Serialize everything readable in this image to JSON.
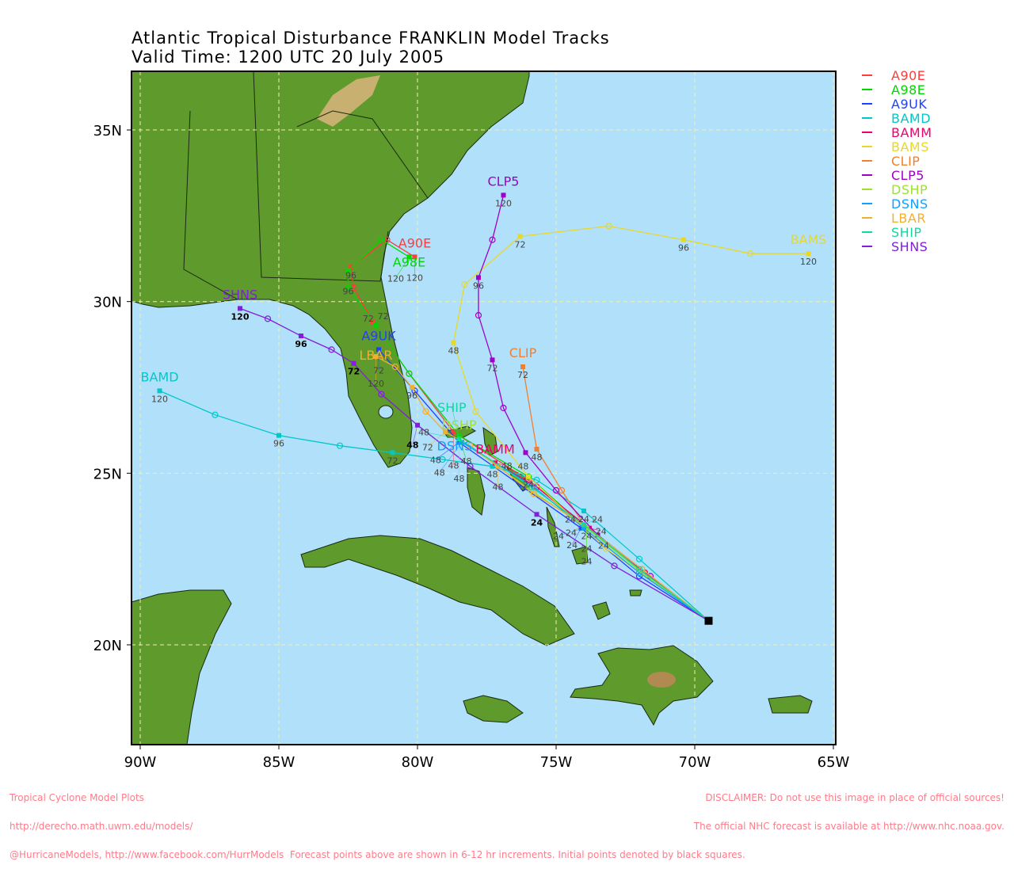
{
  "title_line1": "Atlantic Tropical Disturbance FRANKLIN Model Tracks",
  "title_line2": "Valid Time: 1200 UTC 20 July 2005",
  "footer_left": [
    "Tropical Cyclone Model Plots",
    "http://derecho.math.uwm.edu/models/",
    "@HurricaneModels, http://www.facebook.com/HurrModels  Forecast points above are shown in 6-12 hr increments. Initial points denoted by black squares."
  ],
  "footer_right": [
    "DISCLAIMER: Do not use this image in place of official sources!",
    "The official NHC forecast is available at http://www.nhc.noaa.gov."
  ],
  "chart_data": {
    "type": "map-tracks",
    "lon_range": [
      -90.3,
      -64.9
    ],
    "lat_range": [
      17.1,
      36.7
    ],
    "grid": true,
    "x_ticks": [
      "90W",
      "85W",
      "80W",
      "75W",
      "70W",
      "65W"
    ],
    "y_ticks": [
      "35N",
      "30N",
      "25N",
      "20N"
    ],
    "legend_position": "right",
    "initial_point": {
      "lat": 20.7,
      "lon": -69.5
    },
    "point_format": "[forecast_hour, lat, lon]",
    "models": [
      {
        "name": "A90E",
        "color": "#ff3b3b",
        "points": [
          [
            12,
            22.1,
            -71.8
          ],
          [
            24,
            23.4,
            -73.9
          ],
          [
            36,
            24.8,
            -76.0
          ],
          [
            48,
            26.2,
            -78.7
          ],
          [
            60,
            27.9,
            -80.3
          ],
          [
            72,
            29.4,
            -81.6
          ],
          [
            84,
            30.4,
            -82.3
          ],
          [
            96,
            31.0,
            -82.4
          ],
          [
            108,
            31.8,
            -81.1
          ],
          [
            120,
            31.3,
            -80.1
          ]
        ]
      },
      {
        "name": "A98E",
        "color": "#00d800",
        "points": [
          [
            12,
            22.1,
            -71.9
          ],
          [
            24,
            23.4,
            -73.9
          ],
          [
            36,
            24.9,
            -76.0
          ],
          [
            48,
            26.1,
            -78.5
          ],
          [
            60,
            27.9,
            -80.3
          ],
          [
            72,
            29.3,
            -81.5
          ],
          [
            84,
            30.4,
            -82.5
          ],
          [
            96,
            30.9,
            -82.5
          ],
          [
            108,
            31.8,
            -81.3
          ],
          [
            120,
            31.3,
            -80.3
          ]
        ]
      },
      {
        "name": "A9UK",
        "color": "#2040ff",
        "points": [
          [
            12,
            22.0,
            -72.0
          ],
          [
            24,
            23.4,
            -74.1
          ],
          [
            36,
            24.6,
            -76.2
          ],
          [
            48,
            25.9,
            -78.5
          ],
          [
            60,
            27.4,
            -80.1
          ],
          [
            72,
            28.6,
            -81.4
          ]
        ]
      },
      {
        "name": "BAMD",
        "color": "#00c8c8",
        "points": [
          [
            12,
            22.5,
            -72.0
          ],
          [
            24,
            23.9,
            -74.0
          ],
          [
            36,
            24.8,
            -75.7
          ],
          [
            48,
            25.2,
            -77.3
          ],
          [
            60,
            25.4,
            -79.1
          ],
          [
            72,
            25.6,
            -80.9
          ],
          [
            84,
            25.8,
            -82.8
          ],
          [
            96,
            26.1,
            -85.0
          ],
          [
            108,
            26.7,
            -87.3
          ],
          [
            120,
            27.4,
            -89.3
          ]
        ]
      },
      {
        "name": "BAMM",
        "color": "#f0006e",
        "points": [
          [
            12,
            22.1,
            -71.8
          ],
          [
            24,
            23.4,
            -73.8
          ],
          [
            36,
            24.6,
            -75.7
          ],
          [
            48,
            25.3,
            -77.2
          ]
        ]
      },
      {
        "name": "BAMS",
        "color": "#e8d82a",
        "points": [
          [
            12,
            22.8,
            -73.2
          ],
          [
            24,
            24.9,
            -76.0
          ],
          [
            36,
            26.8,
            -77.9
          ],
          [
            48,
            28.8,
            -78.7
          ],
          [
            60,
            30.5,
            -78.3
          ],
          [
            72,
            31.9,
            -76.3
          ],
          [
            84,
            32.2,
            -73.1
          ],
          [
            96,
            31.8,
            -70.4
          ],
          [
            108,
            31.4,
            -68.0
          ],
          [
            120,
            31.4,
            -65.9
          ]
        ]
      },
      {
        "name": "CLIP",
        "color": "#f08030",
        "points": [
          [
            12,
            22.2,
            -71.9
          ],
          [
            24,
            23.5,
            -74.0
          ],
          [
            36,
            24.5,
            -74.8
          ],
          [
            48,
            25.7,
            -75.7
          ],
          [
            72,
            28.1,
            -76.2
          ]
        ]
      },
      {
        "name": "CLP5",
        "color": "#a000c8",
        "points": [
          [
            12,
            22.0,
            -71.6
          ],
          [
            24,
            23.2,
            -73.5
          ],
          [
            36,
            24.5,
            -75.0
          ],
          [
            48,
            25.6,
            -76.1
          ],
          [
            60,
            26.9,
            -76.9
          ],
          [
            72,
            28.3,
            -77.3
          ],
          [
            84,
            29.6,
            -77.8
          ],
          [
            96,
            30.7,
            -77.8
          ],
          [
            108,
            31.8,
            -77.3
          ],
          [
            120,
            33.1,
            -76.9
          ]
        ]
      },
      {
        "name": "DSHP",
        "color": "#a0e030",
        "points": [
          [
            12,
            22.1,
            -71.9
          ],
          [
            24,
            23.4,
            -73.9
          ],
          [
            36,
            24.5,
            -75.9
          ],
          [
            48,
            26.0,
            -78.5
          ]
        ]
      },
      {
        "name": "DSNS",
        "color": "#10a0ff",
        "points": [
          [
            12,
            22.1,
            -72.0
          ],
          [
            24,
            23.4,
            -74.0
          ],
          [
            36,
            24.6,
            -75.8
          ],
          [
            48,
            25.9,
            -78.4
          ]
        ]
      },
      {
        "name": "LBAR",
        "color": "#f0b030",
        "points": [
          [
            12,
            22.2,
            -71.9
          ],
          [
            24,
            23.5,
            -74.0
          ],
          [
            36,
            24.4,
            -75.8
          ],
          [
            48,
            25.2,
            -77.1
          ],
          [
            60,
            25.8,
            -78.1
          ],
          [
            72,
            26.2,
            -79.0
          ],
          [
            84,
            26.8,
            -79.7
          ],
          [
            96,
            27.5,
            -80.2
          ],
          [
            108,
            28.1,
            -80.8
          ],
          [
            120,
            28.4,
            -81.5
          ]
        ]
      },
      {
        "name": "SHIP",
        "color": "#10d8a0",
        "points": [
          [
            12,
            22.2,
            -72.0
          ],
          [
            24,
            23.5,
            -74.0
          ],
          [
            36,
            24.6,
            -75.9
          ],
          [
            48,
            26.0,
            -78.5
          ]
        ]
      },
      {
        "name": "SHNS",
        "color": "#8020d8",
        "points": [
          [
            12,
            22.3,
            -72.9
          ],
          [
            24,
            23.8,
            -75.7
          ],
          [
            36,
            25.2,
            -78.1
          ],
          [
            48,
            26.4,
            -80.0
          ],
          [
            60,
            27.3,
            -81.3
          ],
          [
            72,
            28.2,
            -82.3
          ],
          [
            84,
            28.6,
            -83.1
          ],
          [
            96,
            29.0,
            -84.2
          ],
          [
            108,
            29.5,
            -85.4
          ],
          [
            120,
            29.8,
            -86.4
          ]
        ]
      }
    ]
  }
}
